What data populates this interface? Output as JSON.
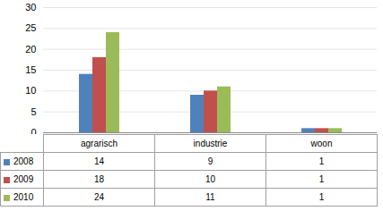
{
  "chart_data": {
    "type": "bar",
    "categories": [
      "agrarisch",
      "industrie",
      "woon"
    ],
    "series": [
      {
        "name": "2008",
        "color": "#4f81bd",
        "values": [
          14,
          9,
          1
        ]
      },
      {
        "name": "2009",
        "color": "#c0504d",
        "values": [
          18,
          10,
          1
        ]
      },
      {
        "name": "2010",
        "color": "#9bbb59",
        "values": [
          24,
          11,
          1
        ]
      }
    ],
    "ylim": [
      0,
      30
    ],
    "yticks": [
      0,
      5,
      10,
      15,
      20,
      25,
      30
    ],
    "grid": true
  }
}
